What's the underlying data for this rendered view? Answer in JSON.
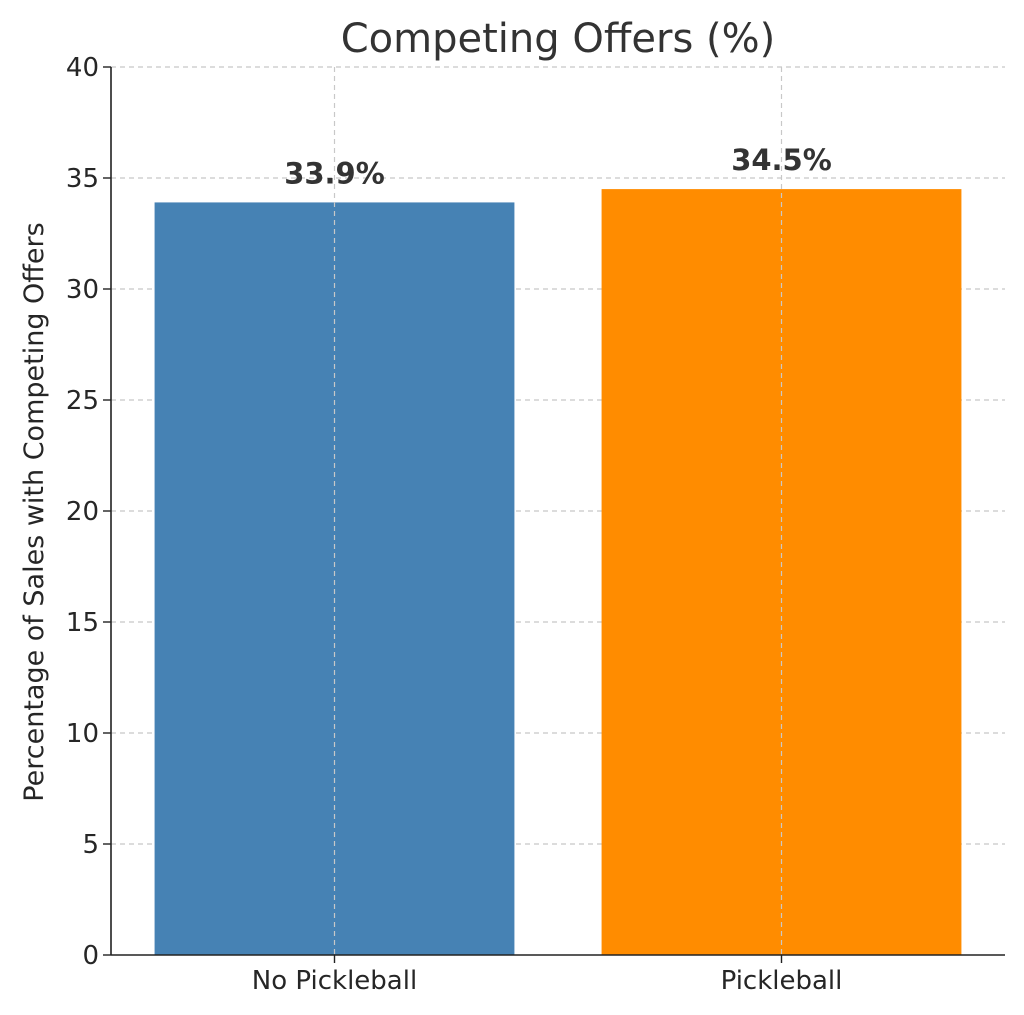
{
  "chart_data": {
    "type": "bar",
    "title": "Competing Offers (%)",
    "xlabel": "",
    "ylabel": "Percentage of Sales with Competing Offers",
    "categories": [
      "No Pickleball",
      "Pickleball"
    ],
    "values": [
      33.9,
      34.5
    ],
    "value_labels": [
      "33.9%",
      "34.5%"
    ],
    "colors": [
      "#4682b4",
      "#ff8c00"
    ],
    "ylim": [
      0,
      40
    ],
    "yticks": [
      0,
      5,
      10,
      15,
      20,
      25,
      30,
      35,
      40
    ],
    "ytick_labels": [
      "0",
      "5",
      "10",
      "15",
      "20",
      "25",
      "30",
      "35",
      "40"
    ],
    "grid": true,
    "legend": "none"
  }
}
